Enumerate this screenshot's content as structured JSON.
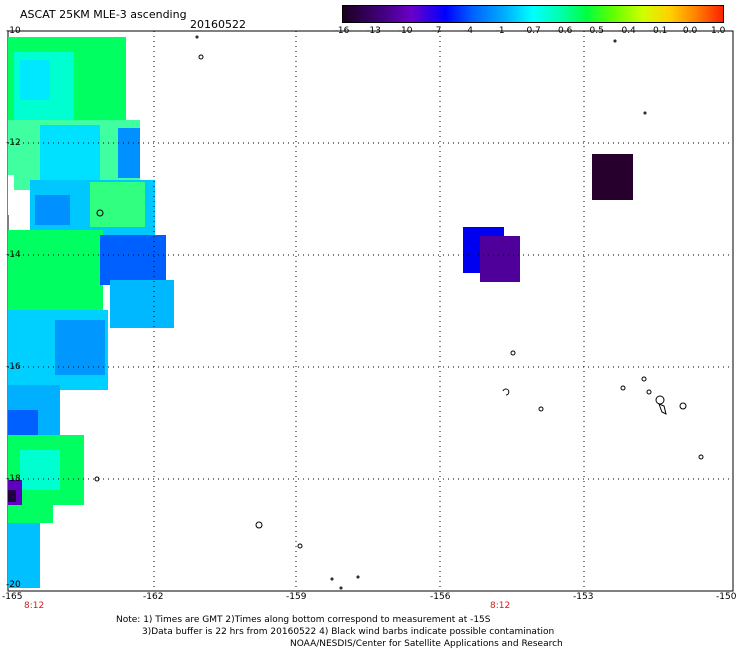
{
  "header": {
    "title": "ASCAT 25KM MLE-3 ascending",
    "date": "20160522"
  },
  "colorbar": {
    "ticks": [
      "-16",
      "-13",
      "-10",
      "-7",
      "-4",
      "-1",
      "-0.7",
      "-0.6",
      "-0.5",
      "-0.4",
      "-0.1",
      "0.0",
      "1.0"
    ],
    "colors": [
      "#1a0020",
      "#40007a",
      "#6a00c8",
      "#0000ff",
      "#0060ff",
      "#00a8ff",
      "#00ffff",
      "#00ffb0",
      "#00ff40",
      "#60ff00",
      "#d0ff00",
      "#ffd000",
      "#ff8000",
      "#ff2000"
    ]
  },
  "map": {
    "y_labels": [
      "-10",
      "-12",
      "-14",
      "-16",
      "-18",
      "-20"
    ],
    "x_labels": [
      "-165",
      "-162",
      "-159",
      "-156",
      "-153",
      "-150"
    ],
    "time_labels": [
      "8:12",
      "8:12"
    ]
  },
  "notes": {
    "line1": "Note: 1) Times are GMT 2)Times along bottom correspond to measurement at -15S",
    "line2": "3)Data buffer is 22 hrs from 20160522 4) Black wind barbs indicate possible contamination",
    "line3": "NOAA/NESDIS/Center for Satellite Applications and Research"
  }
}
